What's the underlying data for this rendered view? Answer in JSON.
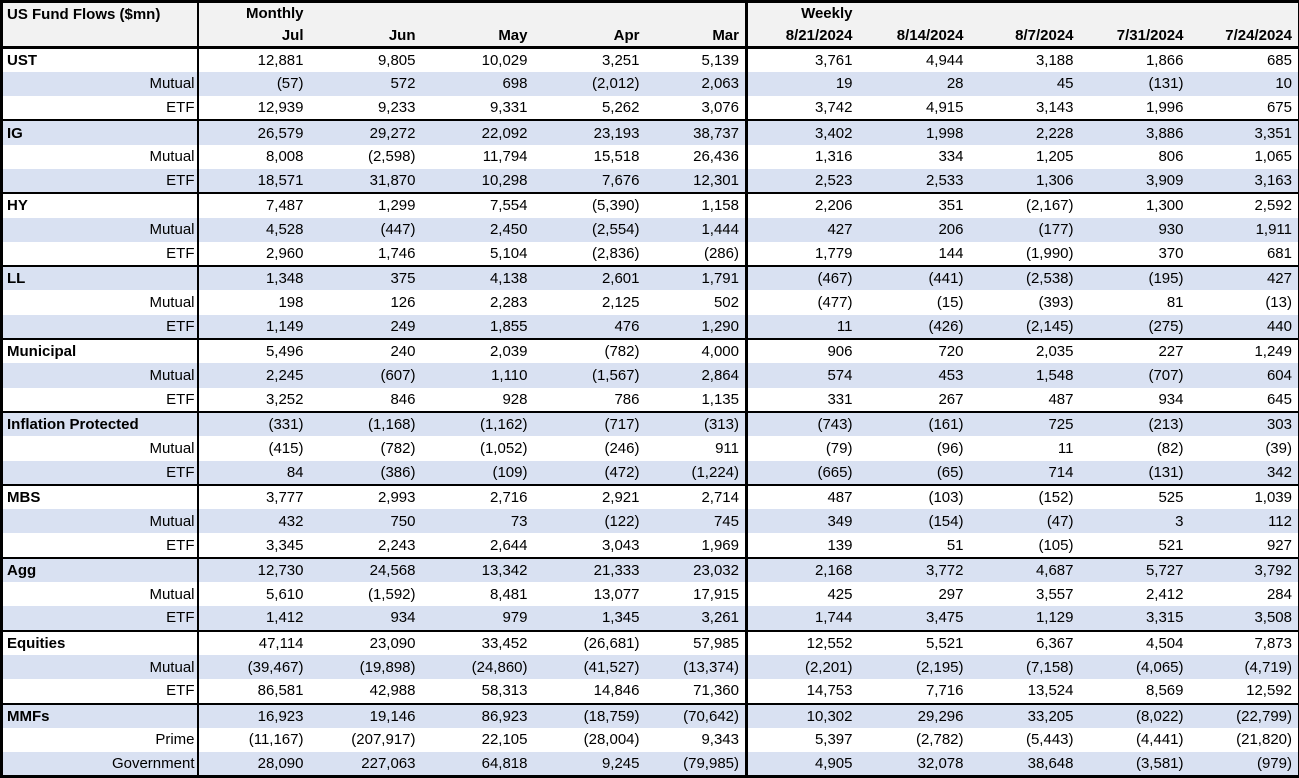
{
  "colors": {
    "row_band": "#D9E1F2",
    "header_bg": "#F2F2F2",
    "border": "#000000",
    "row_white": "#FFFFFF"
  },
  "chart_data": {
    "type": "table",
    "title": "US Fund Flows ($mn)",
    "column_groups": [
      {
        "label": "Monthly",
        "columns": [
          "Jul",
          "Jun",
          "May",
          "Apr",
          "Mar"
        ]
      },
      {
        "label": "Weekly",
        "columns": [
          "8/21/2024",
          "8/14/2024",
          "8/7/2024",
          "7/31/2024",
          "7/24/2024"
        ]
      }
    ],
    "sections": [
      {
        "category": "UST",
        "rows": [
          {
            "label": "UST",
            "is_category": true,
            "monthly": [
              "12,881",
              "9,805",
              "10,029",
              "3,251",
              "5,139"
            ],
            "weekly": [
              "3,761",
              "4,944",
              "3,188",
              "1,866",
              "685"
            ]
          },
          {
            "label": "Mutual",
            "is_category": false,
            "monthly": [
              "(57)",
              "572",
              "698",
              "(2,012)",
              "2,063"
            ],
            "weekly": [
              "19",
              "28",
              "45",
              "(131)",
              "10"
            ]
          },
          {
            "label": "ETF",
            "is_category": false,
            "monthly": [
              "12,939",
              "9,233",
              "9,331",
              "5,262",
              "3,076"
            ],
            "weekly": [
              "3,742",
              "4,915",
              "3,143",
              "1,996",
              "675"
            ]
          }
        ]
      },
      {
        "category": "IG",
        "rows": [
          {
            "label": "IG",
            "is_category": true,
            "monthly": [
              "26,579",
              "29,272",
              "22,092",
              "23,193",
              "38,737"
            ],
            "weekly": [
              "3,402",
              "1,998",
              "2,228",
              "3,886",
              "3,351"
            ]
          },
          {
            "label": "Mutual",
            "is_category": false,
            "monthly": [
              "8,008",
              "(2,598)",
              "11,794",
              "15,518",
              "26,436"
            ],
            "weekly": [
              "1,316",
              "334",
              "1,205",
              "806",
              "1,065"
            ]
          },
          {
            "label": "ETF",
            "is_category": false,
            "monthly": [
              "18,571",
              "31,870",
              "10,298",
              "7,676",
              "12,301"
            ],
            "weekly": [
              "2,523",
              "2,533",
              "1,306",
              "3,909",
              "3,163"
            ]
          }
        ]
      },
      {
        "category": "HY",
        "rows": [
          {
            "label": "HY",
            "is_category": true,
            "monthly": [
              "7,487",
              "1,299",
              "7,554",
              "(5,390)",
              "1,158"
            ],
            "weekly": [
              "2,206",
              "351",
              "(2,167)",
              "1,300",
              "2,592"
            ]
          },
          {
            "label": "Mutual",
            "is_category": false,
            "monthly": [
              "4,528",
              "(447)",
              "2,450",
              "(2,554)",
              "1,444"
            ],
            "weekly": [
              "427",
              "206",
              "(177)",
              "930",
              "1,911"
            ]
          },
          {
            "label": "ETF",
            "is_category": false,
            "monthly": [
              "2,960",
              "1,746",
              "5,104",
              "(2,836)",
              "(286)"
            ],
            "weekly": [
              "1,779",
              "144",
              "(1,990)",
              "370",
              "681"
            ]
          }
        ]
      },
      {
        "category": "LL",
        "rows": [
          {
            "label": "LL",
            "is_category": true,
            "monthly": [
              "1,348",
              "375",
              "4,138",
              "2,601",
              "1,791"
            ],
            "weekly": [
              "(467)",
              "(441)",
              "(2,538)",
              "(195)",
              "427"
            ]
          },
          {
            "label": "Mutual",
            "is_category": false,
            "monthly": [
              "198",
              "126",
              "2,283",
              "2,125",
              "502"
            ],
            "weekly": [
              "(477)",
              "(15)",
              "(393)",
              "81",
              "(13)"
            ]
          },
          {
            "label": "ETF",
            "is_category": false,
            "monthly": [
              "1,149",
              "249",
              "1,855",
              "476",
              "1,290"
            ],
            "weekly": [
              "11",
              "(426)",
              "(2,145)",
              "(275)",
              "440"
            ]
          }
        ]
      },
      {
        "category": "Municipal",
        "rows": [
          {
            "label": "Municipal",
            "is_category": true,
            "monthly": [
              "5,496",
              "240",
              "2,039",
              "(782)",
              "4,000"
            ],
            "weekly": [
              "906",
              "720",
              "2,035",
              "227",
              "1,249"
            ]
          },
          {
            "label": "Mutual",
            "is_category": false,
            "monthly": [
              "2,245",
              "(607)",
              "1,110",
              "(1,567)",
              "2,864"
            ],
            "weekly": [
              "574",
              "453",
              "1,548",
              "(707)",
              "604"
            ]
          },
          {
            "label": "ETF",
            "is_category": false,
            "monthly": [
              "3,252",
              "846",
              "928",
              "786",
              "1,135"
            ],
            "weekly": [
              "331",
              "267",
              "487",
              "934",
              "645"
            ]
          }
        ]
      },
      {
        "category": "Inflation Protected",
        "rows": [
          {
            "label": "Inflation Protected",
            "is_category": true,
            "monthly": [
              "(331)",
              "(1,168)",
              "(1,162)",
              "(717)",
              "(313)"
            ],
            "weekly": [
              "(743)",
              "(161)",
              "725",
              "(213)",
              "303"
            ]
          },
          {
            "label": "Mutual",
            "is_category": false,
            "monthly": [
              "(415)",
              "(782)",
              "(1,052)",
              "(246)",
              "911"
            ],
            "weekly": [
              "(79)",
              "(96)",
              "11",
              "(82)",
              "(39)"
            ]
          },
          {
            "label": "ETF",
            "is_category": false,
            "monthly": [
              "84",
              "(386)",
              "(109)",
              "(472)",
              "(1,224)"
            ],
            "weekly": [
              "(665)",
              "(65)",
              "714",
              "(131)",
              "342"
            ]
          }
        ]
      },
      {
        "category": "MBS",
        "rows": [
          {
            "label": "MBS",
            "is_category": true,
            "monthly": [
              "3,777",
              "2,993",
              "2,716",
              "2,921",
              "2,714"
            ],
            "weekly": [
              "487",
              "(103)",
              "(152)",
              "525",
              "1,039"
            ]
          },
          {
            "label": "Mutual",
            "is_category": false,
            "monthly": [
              "432",
              "750",
              "73",
              "(122)",
              "745"
            ],
            "weekly": [
              "349",
              "(154)",
              "(47)",
              "3",
              "112"
            ]
          },
          {
            "label": "ETF",
            "is_category": false,
            "monthly": [
              "3,345",
              "2,243",
              "2,644",
              "3,043",
              "1,969"
            ],
            "weekly": [
              "139",
              "51",
              "(105)",
              "521",
              "927"
            ]
          }
        ]
      },
      {
        "category": "Agg",
        "rows": [
          {
            "label": "Agg",
            "is_category": true,
            "monthly": [
              "12,730",
              "24,568",
              "13,342",
              "21,333",
              "23,032"
            ],
            "weekly": [
              "2,168",
              "3,772",
              "4,687",
              "5,727",
              "3,792"
            ]
          },
          {
            "label": "Mutual",
            "is_category": false,
            "monthly": [
              "5,610",
              "(1,592)",
              "8,481",
              "13,077",
              "17,915"
            ],
            "weekly": [
              "425",
              "297",
              "3,557",
              "2,412",
              "284"
            ]
          },
          {
            "label": "ETF",
            "is_category": false,
            "monthly": [
              "1,412",
              "934",
              "979",
              "1,345",
              "3,261"
            ],
            "weekly": [
              "1,744",
              "3,475",
              "1,129",
              "3,315",
              "3,508"
            ]
          }
        ]
      },
      {
        "category": "Equities",
        "rows": [
          {
            "label": "Equities",
            "is_category": true,
            "monthly": [
              "47,114",
              "23,090",
              "33,452",
              "(26,681)",
              "57,985"
            ],
            "weekly": [
              "12,552",
              "5,521",
              "6,367",
              "4,504",
              "7,873"
            ]
          },
          {
            "label": "Mutual",
            "is_category": false,
            "monthly": [
              "(39,467)",
              "(19,898)",
              "(24,860)",
              "(41,527)",
              "(13,374)"
            ],
            "weekly": [
              "(2,201)",
              "(2,195)",
              "(7,158)",
              "(4,065)",
              "(4,719)"
            ]
          },
          {
            "label": "ETF",
            "is_category": false,
            "monthly": [
              "86,581",
              "42,988",
              "58,313",
              "14,846",
              "71,360"
            ],
            "weekly": [
              "14,753",
              "7,716",
              "13,524",
              "8,569",
              "12,592"
            ]
          }
        ]
      },
      {
        "category": "MMFs",
        "rows": [
          {
            "label": "MMFs",
            "is_category": true,
            "monthly": [
              "16,923",
              "19,146",
              "86,923",
              "(18,759)",
              "(70,642)"
            ],
            "weekly": [
              "10,302",
              "29,296",
              "33,205",
              "(8,022)",
              "(22,799)"
            ]
          },
          {
            "label": "Prime",
            "is_category": false,
            "monthly": [
              "(11,167)",
              "(207,917)",
              "22,105",
              "(28,004)",
              "9,343"
            ],
            "weekly": [
              "5,397",
              "(2,782)",
              "(5,443)",
              "(4,441)",
              "(21,820)"
            ]
          },
          {
            "label": "Government",
            "is_category": false,
            "monthly": [
              "28,090",
              "227,063",
              "64,818",
              "9,245",
              "(79,985)"
            ],
            "weekly": [
              "4,905",
              "32,078",
              "38,648",
              "(3,581)",
              "(979)"
            ]
          }
        ]
      }
    ]
  }
}
